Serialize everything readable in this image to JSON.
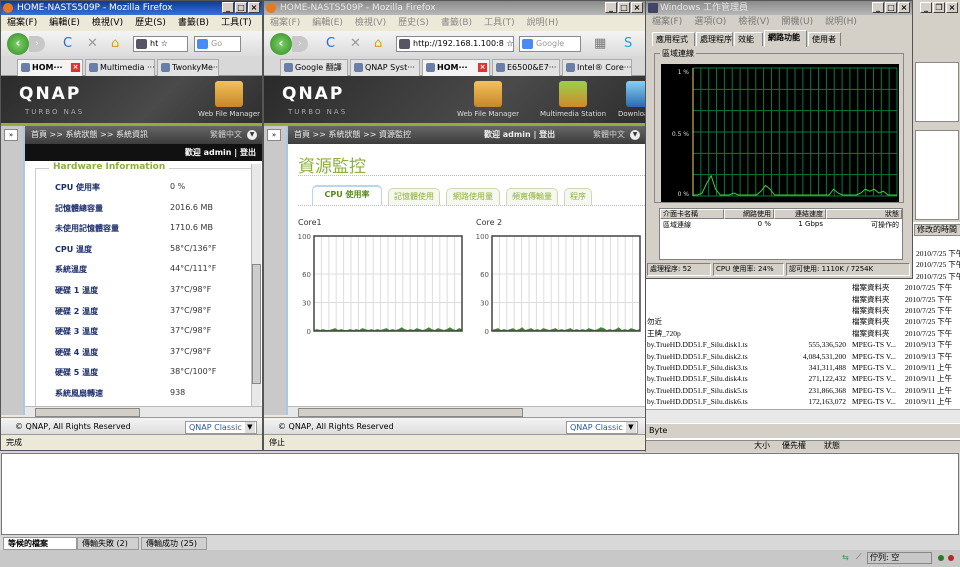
{
  "firefox_left": {
    "title": "HOME-NASTS509P - Mozilla Firefox",
    "menu": [
      "檔案(F)",
      "編輯(E)",
      "檢視(V)",
      "歷史(S)",
      "書籤(B)",
      "工具(T)",
      "說明(H)"
    ],
    "url": "ht",
    "search_placeholder": "Go",
    "tabs": [
      {
        "label": "HOM···",
        "selected": true
      },
      {
        "label": "Multimedia ···",
        "selected": false
      },
      {
        "label": "TwonkyMe···",
        "selected": false
      }
    ],
    "qnap": {
      "logo": "QNAP",
      "sub": "TURBO NAS",
      "apps": [
        "Web File Manager"
      ]
    },
    "breadcrumb": "首頁 >> 系統狀態 >> 系統資訊",
    "language": "繁體中文",
    "welcome": "歡迎 admin | 登出",
    "section_title": "Hardware Information",
    "hardware": [
      {
        "label": "CPU 使用率",
        "value": "0 %"
      },
      {
        "label": "記憶體總容量",
        "value": "2016.6 MB"
      },
      {
        "label": "未使用記憶體容量",
        "value": "1710.6 MB"
      },
      {
        "label": "CPU 溫度",
        "value": "58°C/136°F"
      },
      {
        "label": "系統溫度",
        "value": "44°C/111°F"
      },
      {
        "label": "硬碟 1 溫度",
        "value": "37°C/98°F"
      },
      {
        "label": "硬碟 2 溫度",
        "value": "37°C/98°F"
      },
      {
        "label": "硬碟 3 溫度",
        "value": "37°C/98°F"
      },
      {
        "label": "硬碟 4 溫度",
        "value": "37°C/98°F"
      },
      {
        "label": "硬碟 5 溫度",
        "value": "38°C/100°F"
      },
      {
        "label": "系統風扇轉速",
        "value": "938"
      }
    ],
    "footer": "© QNAP, All Rights Reserved",
    "theme": "QNAP Classic",
    "status": "完成"
  },
  "firefox_mid": {
    "title": "HOME-NASTS509P - Mozilla Firefox",
    "menu": [
      "檔案(F)",
      "編輯(E)",
      "檢視(V)",
      "歷史(S)",
      "書籤(B)",
      "工具(T)",
      "說明(H)"
    ],
    "url": "http://192.168.1.100:8",
    "search_placeholder": "Google",
    "tabs": [
      {
        "label": "Google 翻譯",
        "selected": false
      },
      {
        "label": "QNAP Syst···",
        "selected": false
      },
      {
        "label": "HOM···",
        "selected": true
      },
      {
        "label": "E6500&E7···",
        "selected": false
      },
      {
        "label": "Intel® Core···",
        "selected": false
      }
    ],
    "qnap": {
      "logo": "QNAP",
      "sub": "TURBO NAS",
      "apps": [
        "Web File Manager",
        "Multimedia Station",
        "Download"
      ]
    },
    "breadcrumb": "首頁 >> 系統狀態 >> 資源監控",
    "welcome": "歡迎 admin | 登出",
    "language": "繁體中文",
    "page_title": "資源監控",
    "tabs_res": [
      {
        "label": "CPU 使用率",
        "selected": true
      },
      {
        "label": "記憶體使用",
        "selected": false
      },
      {
        "label": "網路使用量",
        "selected": false
      },
      {
        "label": "頻寬傳輸量",
        "selected": false
      },
      {
        "label": "程序",
        "selected": false
      }
    ],
    "footer": "© QNAP, All Rights Reserved",
    "theme": "QNAP Classic",
    "status": "停止"
  },
  "chart_data": [
    {
      "type": "area",
      "title": "Core1",
      "ylim": [
        0,
        100
      ],
      "yticks": [
        0,
        30,
        60,
        100
      ],
      "grid": true,
      "color": "#3a8a2a",
      "values": [
        1,
        2,
        1,
        2,
        1,
        1,
        2,
        3,
        1,
        2,
        1,
        1,
        2,
        1,
        2,
        1,
        3,
        2,
        1,
        2,
        1,
        2,
        1,
        2,
        3,
        1,
        2,
        1,
        2,
        4,
        2,
        1,
        2,
        1,
        3,
        2,
        1,
        2,
        4,
        2,
        1,
        3,
        2,
        1,
        2,
        4,
        2,
        1,
        3,
        2
      ]
    },
    {
      "type": "area",
      "title": "Core 2",
      "ylim": [
        0,
        100
      ],
      "yticks": [
        0,
        30,
        60,
        100
      ],
      "grid": true,
      "color": "#3a8a2a",
      "values": [
        1,
        2,
        3,
        1,
        2,
        1,
        2,
        3,
        1,
        2,
        4,
        1,
        2,
        3,
        1,
        2,
        1,
        3,
        2,
        1,
        2,
        3,
        1,
        2,
        1,
        2,
        3,
        1,
        2,
        1,
        2,
        1,
        3,
        2,
        1,
        2,
        4,
        3,
        1,
        2,
        1,
        2,
        4,
        1,
        2,
        1,
        3,
        2,
        1,
        2
      ]
    },
    {
      "type": "line",
      "title": "區域連線",
      "ylim": [
        0,
        1
      ],
      "ytick_labels": [
        "1 %",
        "0.5 %",
        "0 %"
      ],
      "grid": true,
      "color": "#3bd13b",
      "values": [
        0,
        0,
        0.01,
        0.06,
        0.1,
        0.03,
        0,
        0,
        0,
        0.01,
        0,
        0,
        0,
        0,
        0,
        0.02,
        0.05,
        0.03,
        0,
        0,
        0,
        0,
        0,
        0,
        0,
        0,
        0,
        0,
        0,
        0,
        0,
        0.03,
        0.01,
        0,
        0,
        0,
        0,
        0.01,
        0.03,
        0.02,
        0.03,
        0.01,
        0.02,
        0,
        0,
        0
      ]
    }
  ],
  "taskmgr": {
    "title": "Windows 工作管理員",
    "menu": [
      "檔案(F)",
      "選項(O)",
      "檢視(V)",
      "關機(U)",
      "說明(H)"
    ],
    "tabs": [
      {
        "label": "應用程式",
        "selected": false
      },
      {
        "label": "處理程序",
        "selected": false
      },
      {
        "label": "效能",
        "selected": false
      },
      {
        "label": "網路功能",
        "selected": true
      },
      {
        "label": "使用者",
        "selected": false
      }
    ],
    "columns": [
      "介面卡名稱",
      "網路使用",
      "連結速度",
      "狀態"
    ],
    "rows": [
      [
        "區域連線",
        "0 %",
        "1 Gbps",
        "可操作的"
      ]
    ],
    "status": [
      "處理程序: 52",
      "CPU 使用率: 24%",
      "認可使用: 1110K / 7254K"
    ]
  },
  "explorer": {
    "header_partial": "修改的時間",
    "rows": [
      {
        "name": "",
        "size": "",
        "type": "",
        "date": "2010/7/25 下午"
      },
      {
        "name": "",
        "size": "",
        "type": "",
        "date": "2010/7/25 下午"
      },
      {
        "name": "",
        "size": "",
        "type": "",
        "date": "2010/7/25 下午"
      },
      {
        "name": "",
        "size": "",
        "type": "檔案資料夾",
        "date": "2010/7/25 下午"
      },
      {
        "name": "",
        "size": "",
        "type": "檔案資料夾",
        "date": "2010/7/25 下午"
      },
      {
        "name": "",
        "size": "",
        "type": "檔案資料夾",
        "date": "2010/7/25 下午"
      },
      {
        "name": "勿近",
        "size": "",
        "type": "檔案資料夾",
        "date": "2010/7/25 下午"
      },
      {
        "name": "王牌_720p",
        "size": "",
        "type": "檔案資料夾",
        "date": "2010/7/25 下午"
      },
      {
        "name": "by.TrueHD.DD51.F_Silu.disk1.ts",
        "size": "555,336,520",
        "type": "MPEG-TS V...",
        "date": "2010/9/13 下午"
      },
      {
        "name": "by.TrueHD.DD51.F_Silu.disk2.ts",
        "size": "4,084,531,200",
        "type": "MPEG-TS V...",
        "date": "2010/9/13 下午"
      },
      {
        "name": "by.TrueHD.DD51.F_Silu.disk3.ts",
        "size": "341,311,488",
        "type": "MPEG-TS V...",
        "date": "2010/9/11 上午"
      },
      {
        "name": "by.TrueHD.DD51.F_Silu.disk4.ts",
        "size": "271,122,432",
        "type": "MPEG-TS V...",
        "date": "2010/9/11 上午"
      },
      {
        "name": "by.TrueHD.DD51.F_Silu.disk5.ts",
        "size": "231,866,368",
        "type": "MPEG-TS V...",
        "date": "2010/9/11 上午"
      },
      {
        "name": "by.TrueHD.DD51.F_Silu.disk6.ts",
        "size": "172,163,072",
        "type": "MPEG-TS V...",
        "date": "2010/9/11 上午"
      }
    ],
    "status": "Byte",
    "queue_columns": [
      "大小",
      "優先權",
      "狀態"
    ]
  },
  "transfer": {
    "tabs": [
      {
        "label": "等候的檔案",
        "selected": true
      },
      {
        "label": "傳輸失敗 (2)",
        "selected": false
      },
      {
        "label": "傳輸成功 (25)",
        "selected": false
      }
    ],
    "queue_status": "佇列: 空"
  }
}
